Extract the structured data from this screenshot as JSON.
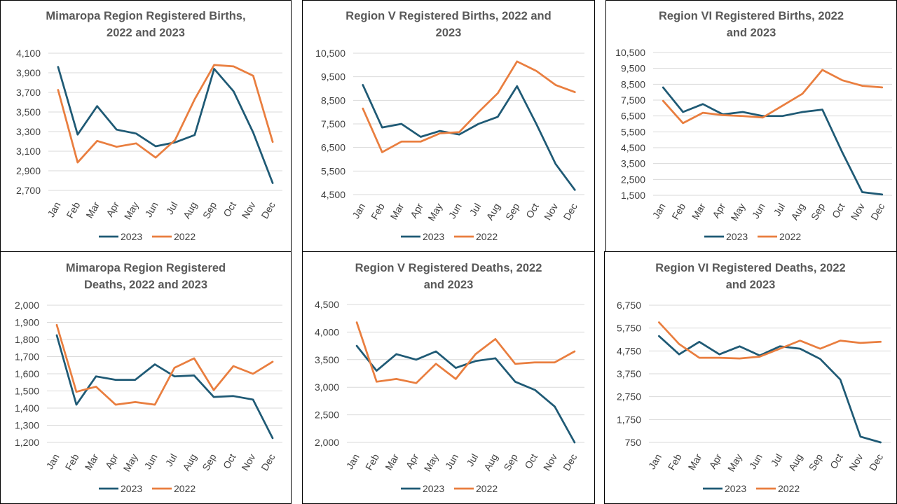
{
  "colors": {
    "series_2023": "#1F5A75",
    "series_2022": "#E97E3F",
    "grid": "#d9d9d9",
    "title": "#595959",
    "tick": "#404040"
  },
  "chart_data": [
    {
      "type": "line",
      "title_lines": [
        "Mimaropa Region  Registered Births,",
        "2022 and 2023"
      ],
      "categories": [
        "Jan",
        "Feb",
        "Mar",
        "Apr",
        "May",
        "Jun",
        "Jul",
        "Aug",
        "Sep",
        "Oct",
        "Nov",
        "Dec"
      ],
      "y_ticks": [
        "4,100",
        "3,900",
        "3,700",
        "3,500",
        "3,300",
        "3,100",
        "2,900",
        "2,700"
      ],
      "ylim": [
        2700,
        4100
      ],
      "series": [
        {
          "name": "2023",
          "values": [
            3960,
            3270,
            3560,
            3320,
            3280,
            3150,
            3190,
            3265,
            3940,
            3710,
            3290,
            2775
          ]
        },
        {
          "name": "2022",
          "values": [
            3725,
            2985,
            3205,
            3145,
            3180,
            3035,
            3215,
            3630,
            3980,
            3965,
            3870,
            3195
          ]
        }
      ],
      "grid": true,
      "legend": "bottom"
    },
    {
      "type": "line",
      "title_lines": [
        "Region V  Registered Births, 2022 and",
        "2023"
      ],
      "categories": [
        "Jan",
        "Feb",
        "Mar",
        "Apr",
        "May",
        "Jun",
        "Jul",
        "Aug",
        "Sep",
        "Oct",
        "Nov",
        "Dec"
      ],
      "y_ticks": [
        "10,500",
        "9,500",
        "8,500",
        "7,500",
        "6,500",
        "5,500",
        "4,500"
      ],
      "ylim": [
        4500,
        10500
      ],
      "series": [
        {
          "name": "2023",
          "values": [
            9150,
            7350,
            7500,
            6950,
            7200,
            7050,
            7500,
            7800,
            9100,
            7500,
            5800,
            4700
          ]
        },
        {
          "name": "2022",
          "values": [
            8150,
            6300,
            6750,
            6750,
            7100,
            7150,
            8000,
            8800,
            10150,
            9750,
            9150,
            8850
          ]
        }
      ],
      "grid": true,
      "legend": "bottom"
    },
    {
      "type": "line",
      "title_lines": [
        "Region VI  Registered Births, 2022",
        "and 2023"
      ],
      "categories": [
        "Jan",
        "Feb",
        "Mar",
        "Apr",
        "May",
        "Jun",
        "Jul",
        "Aug",
        "Sep",
        "Oct",
        "Nov",
        "Dec"
      ],
      "y_ticks": [
        "10,500",
        "9,500",
        "8,500",
        "7,500",
        "6,500",
        "5,500",
        "4,500",
        "3,500",
        "2,500",
        "1,500"
      ],
      "ylim": [
        1500,
        10500
      ],
      "series": [
        {
          "name": "2023",
          "values": [
            8300,
            6750,
            7250,
            6600,
            6750,
            6500,
            6500,
            6750,
            6900,
            4200,
            1700,
            1550
          ]
        },
        {
          "name": "2022",
          "values": [
            7450,
            6050,
            6700,
            6550,
            6500,
            6400,
            7150,
            7900,
            9400,
            8750,
            8400,
            8300
          ]
        }
      ],
      "grid": true,
      "legend": "bottom"
    },
    {
      "type": "line",
      "title_lines": [
        "Mimaropa Region  Registered",
        "Deaths, 2022 and 2023"
      ],
      "categories": [
        "Jan",
        "Feb",
        "Mar",
        "Apr",
        "May",
        "Jun",
        "Jul",
        "Aug",
        "Sep",
        "Oct",
        "Nov",
        "Dec"
      ],
      "y_ticks": [
        "2,000",
        "1,900",
        "1,800",
        "1,700",
        "1,600",
        "1,500",
        "1,400",
        "1,300",
        "1,200"
      ],
      "ylim": [
        1200,
        2000
      ],
      "series": [
        {
          "name": "2023",
          "values": [
            1825,
            1420,
            1585,
            1565,
            1565,
            1655,
            1585,
            1590,
            1465,
            1470,
            1450,
            1225
          ]
        },
        {
          "name": "2022",
          "values": [
            1885,
            1495,
            1525,
            1420,
            1435,
            1420,
            1635,
            1690,
            1505,
            1645,
            1600,
            1670
          ]
        }
      ],
      "grid": true,
      "legend": "bottom"
    },
    {
      "type": "line",
      "title_lines": [
        "Region V  Registered Deaths, 2022",
        "and 2023"
      ],
      "categories": [
        "Jan",
        "Feb",
        "Mar",
        "Apr",
        "May",
        "Jun",
        "Jul",
        "Aug",
        "Sep",
        "Oct",
        "Nov",
        "Dec"
      ],
      "y_ticks": [
        "4,500",
        "4,000",
        "3,500",
        "3,000",
        "2,500",
        "2,000"
      ],
      "ylim": [
        2000,
        4500
      ],
      "series": [
        {
          "name": "2023",
          "values": [
            3750,
            3300,
            3600,
            3500,
            3650,
            3350,
            3475,
            3525,
            3100,
            2950,
            2650,
            2000
          ]
        },
        {
          "name": "2022",
          "values": [
            4175,
            3100,
            3150,
            3075,
            3425,
            3150,
            3600,
            3875,
            3425,
            3450,
            3450,
            3650
          ]
        }
      ],
      "grid": true,
      "legend": "bottom"
    },
    {
      "type": "line",
      "title_lines": [
        "Region VI  Registered Deaths, 2022",
        "and 2023"
      ],
      "categories": [
        "Jan",
        "Feb",
        "Mar",
        "Apr",
        "May",
        "Jun",
        "Jul",
        "Aug",
        "Sep",
        "Oct",
        "Nov",
        "Dec"
      ],
      "y_ticks": [
        "6,750",
        "5,750",
        "4,750",
        "3,750",
        "2,750",
        "1,750",
        "750"
      ],
      "ylim": [
        750,
        6750
      ],
      "series": [
        {
          "name": "2023",
          "values": [
            5400,
            4600,
            5150,
            4600,
            4950,
            4550,
            4950,
            4850,
            4400,
            3500,
            1000,
            750
          ]
        },
        {
          "name": "2022",
          "values": [
            6000,
            5050,
            4450,
            4450,
            4420,
            4500,
            4850,
            5200,
            4850,
            5200,
            5100,
            5150
          ]
        }
      ],
      "grid": true,
      "legend": "bottom"
    }
  ]
}
